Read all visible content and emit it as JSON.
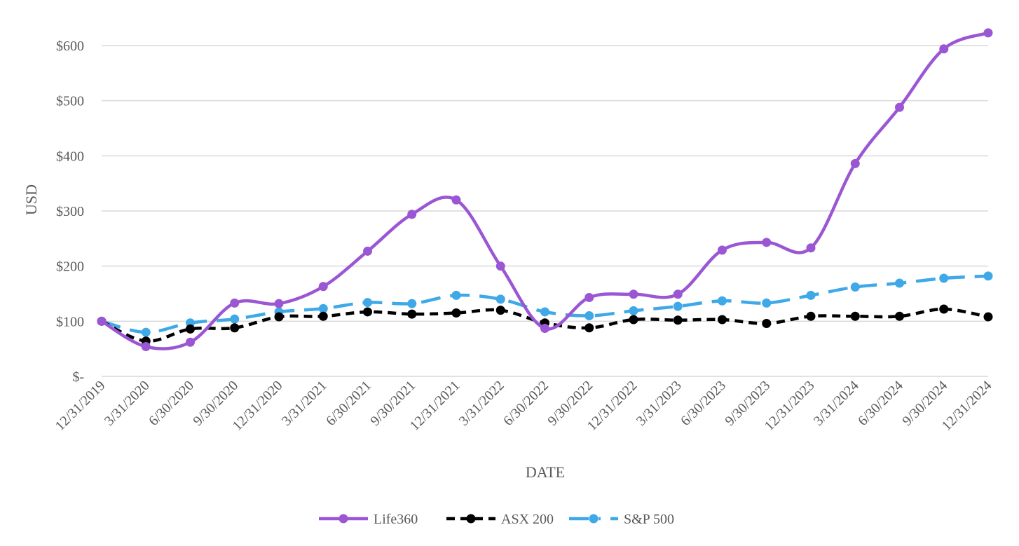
{
  "chart_data": {
    "type": "line",
    "title": "",
    "xlabel": "DATE",
    "ylabel": "USD",
    "ylim": [
      0,
      600
    ],
    "yticks": [
      0,
      100,
      200,
      300,
      400,
      500,
      600
    ],
    "ytick_labels": [
      "$-",
      "$100",
      "$200",
      "$300",
      "$400",
      "$500",
      "$600"
    ],
    "grid": "horizontal",
    "legend": "bottom",
    "categories": [
      "12/31/2019",
      "3/31/2020",
      "6/30/2020",
      "9/30/2020",
      "12/31/2020",
      "3/31/2021",
      "6/30/2021",
      "9/30/2021",
      "12/31/2021",
      "3/31/2022",
      "6/30/2022",
      "9/30/2022",
      "12/31/2022",
      "3/31/2023",
      "6/30/2023",
      "9/30/2023",
      "12/31/2023",
      "3/31/2024",
      "6/30/2024",
      "9/30/2024",
      "12/31/2024"
    ],
    "series": [
      {
        "name": "Life360",
        "color": "#9B57D3",
        "style": "solid",
        "values": [
          100,
          54,
          62,
          133,
          132,
          163,
          227,
          294,
          320,
          200,
          87,
          143,
          149,
          149,
          229,
          243,
          233,
          386,
          488,
          594,
          623
        ]
      },
      {
        "name": "ASX 200",
        "color": "#000000",
        "style": "dash",
        "values": [
          100,
          64,
          86,
          88,
          108,
          109,
          117,
          113,
          115,
          120,
          97,
          88,
          103,
          102,
          103,
          96,
          109,
          109,
          109,
          122,
          108
        ]
      },
      {
        "name": "S&P 500",
        "color": "#3FA9E8",
        "style": "longdash",
        "values": [
          100,
          80,
          97,
          104,
          117,
          123,
          134,
          132,
          147,
          140,
          117,
          110,
          119,
          127,
          137,
          133,
          147,
          162,
          169,
          178,
          182
        ]
      }
    ]
  }
}
